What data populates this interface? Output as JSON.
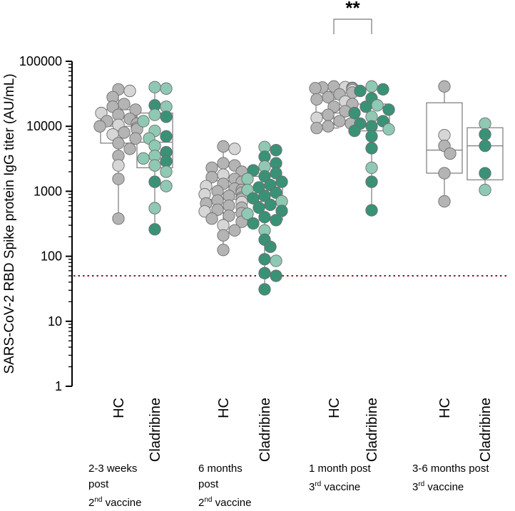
{
  "chart_data": {
    "type": "box-scatter",
    "ylabel": "SARS-CoV-2 RBD Spike protein IgG titer (AU/mL)",
    "yscale": "log",
    "ylim": [
      1,
      100000
    ],
    "yticks": [
      {
        "value": 1,
        "label": "1"
      },
      {
        "value": 10,
        "label": "10"
      },
      {
        "value": 100,
        "label": "100"
      },
      {
        "value": 1000,
        "label": "1000"
      },
      {
        "value": 10000,
        "label": "10000"
      },
      {
        "value": 100000,
        "label": "100000"
      }
    ],
    "threshold": {
      "value": 50,
      "style": "dotted",
      "color": "#8b1a2b"
    },
    "colors": {
      "HC": "#b4b4b4",
      "Cladribine_light": "#8fc9b4",
      "Cladribine_dark": "#3a9276",
      "HC_light": "#d6d6d6",
      "box": "#7a7a7a"
    },
    "significance": {
      "label": "**",
      "between": [
        4,
        5
      ]
    },
    "timepoints": [
      {
        "lines": [
          {
            "text": "2-3 weeks"
          },
          {
            "text": "post"
          },
          {
            "text": "2",
            "sup": "nd",
            "rest": " vaccine"
          }
        ]
      },
      {
        "lines": [
          {
            "text": "6 months"
          },
          {
            "text": "post"
          },
          {
            "text": "2",
            "sup": "nd",
            "rest": " vaccine"
          }
        ]
      },
      {
        "lines": [
          {
            "text": "1 month post"
          },
          {
            "text": "3",
            "sup": "rd",
            "rest": " vaccine"
          }
        ]
      },
      {
        "lines": [
          {
            "text": "3-6 months post"
          },
          {
            "text": "3",
            "sup": "rd",
            "rest": " vaccine"
          }
        ]
      }
    ],
    "series": [
      {
        "name": "HC",
        "group": 0,
        "color": "HC",
        "box": {
          "min": 380,
          "q1": 5500,
          "median": 10000,
          "q3": 18000,
          "max": 37000
        },
        "values": [
          37000,
          35000,
          28000,
          22000,
          20000,
          18000,
          16000,
          15000,
          13000,
          12000,
          11000,
          10500,
          10000,
          9500,
          9000,
          8000,
          7500,
          6500,
          5500,
          4500,
          3500,
          2500,
          1550,
          380
        ]
      },
      {
        "name": "Cladribine",
        "group": 0,
        "color": "Cladribine_light",
        "box": {
          "min": 260,
          "q1": 2300,
          "median": 5700,
          "q3": 16000,
          "max": 40000
        },
        "values": [
          40000,
          38000,
          21000,
          20000,
          15000,
          14000,
          12000,
          8500,
          7000,
          6500,
          5000,
          4000,
          3500,
          3200,
          2900,
          2500,
          2000,
          1400,
          1200,
          550,
          260
        ]
      },
      {
        "name": "HC",
        "group": 1,
        "color": "HC",
        "box": {
          "min": 125,
          "q1": 470,
          "median": 750,
          "q3": 1450,
          "max": 4900
        },
        "values": [
          4900,
          4500,
          2700,
          2500,
          2300,
          2000,
          1800,
          1650,
          1550,
          1400,
          1300,
          1200,
          1100,
          1050,
          1000,
          950,
          900,
          850,
          800,
          760,
          720,
          680,
          650,
          600,
          560,
          520,
          490,
          460,
          420,
          380,
          340,
          300,
          250,
          210,
          125
        ]
      },
      {
        "name": "Cladribine",
        "group": 1,
        "color": "Cladribine_dark",
        "box": {
          "min": 31,
          "q1": 360,
          "median": 700,
          "q3": 1700,
          "max": 4800
        },
        "values": [
          4800,
          4300,
          3400,
          2700,
          2400,
          2100,
          1900,
          1700,
          1550,
          1400,
          1250,
          1150,
          1050,
          950,
          850,
          780,
          700,
          620,
          560,
          500,
          450,
          400,
          360,
          320,
          250,
          180,
          140,
          90,
          85,
          55,
          50,
          31
        ]
      },
      {
        "name": "HC",
        "group": 2,
        "color": "HC",
        "box": {
          "min": 9400,
          "q1": 16000,
          "median": 26000,
          "q3": 38000,
          "max": 41000
        },
        "values": [
          41000,
          40000,
          39500,
          39000,
          38500,
          38000,
          36000,
          33000,
          31000,
          28000,
          26000,
          24000,
          22000,
          20000,
          17000,
          15000,
          13500,
          12000,
          11000,
          10000,
          9400
        ]
      },
      {
        "name": "Cladribine",
        "group": 2,
        "color": "Cladribine_dark",
        "box": {
          "min": 510,
          "q1": 8500,
          "median": 11000,
          "q3": 22000,
          "max": 37000
        },
        "values": [
          41000,
          37000,
          35000,
          27000,
          21000,
          20000,
          18000,
          16000,
          14000,
          12000,
          11000,
          10000,
          9000,
          8500,
          7000,
          4600,
          2300,
          1400,
          510
        ]
      },
      {
        "name": "HC",
        "group": 3,
        "color": "HC",
        "box": {
          "min": 700,
          "q1": 1900,
          "median": 4300,
          "q3": 23000,
          "max": 41000
        },
        "values": [
          41000,
          7300,
          5000,
          3800,
          1900,
          700
        ]
      },
      {
        "name": "Cladribine",
        "group": 3,
        "color": "Cladribine_dark",
        "box": {
          "min": 1000,
          "q1": 1500,
          "median": 5000,
          "q3": 9500,
          "max": 11000
        },
        "values": [
          11000,
          7500,
          5000,
          1900,
          1050
        ]
      }
    ]
  }
}
